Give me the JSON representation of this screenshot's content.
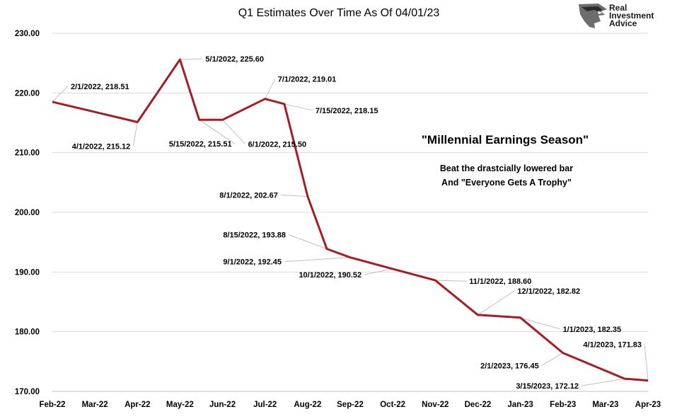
{
  "chart_data": {
    "type": "line",
    "title": "Q1 Estimates Over Time As Of 04/01/23",
    "categories": [
      "Feb-22",
      "Mar-22",
      "Apr-22",
      "May-22",
      "Jun-22",
      "Jul-22",
      "Aug-22",
      "Sep-22",
      "Oct-22",
      "Nov-22",
      "Dec-22",
      "Jan-23",
      "Feb-23",
      "Mar-23",
      "Apr-23"
    ],
    "ylim": [
      170,
      230
    ],
    "yticks": [
      "170.00",
      "180.00",
      "190.00",
      "200.00",
      "210.00",
      "220.00",
      "230.00"
    ],
    "grid": "horizontal",
    "series_color": "#a51c22",
    "points": [
      {
        "x": "2022-02-01",
        "y": 218.51,
        "label": "2/1/2022,  218.51"
      },
      {
        "x": "2022-04-01",
        "y": 215.12,
        "label": "4/1/2022,  215.12"
      },
      {
        "x": "2022-05-01",
        "y": 225.6,
        "label": "5/1/2022,  225.60"
      },
      {
        "x": "2022-05-15",
        "y": 215.51,
        "label": "5/15/2022,  215.51"
      },
      {
        "x": "2022-06-01",
        "y": 215.5,
        "label": "6/1/2022,  215.50"
      },
      {
        "x": "2022-07-01",
        "y": 219.01,
        "label": "7/1/2022,  219.01"
      },
      {
        "x": "2022-07-15",
        "y": 218.15,
        "label": "7/15/2022,  218.15"
      },
      {
        "x": "2022-08-01",
        "y": 202.67,
        "label": "8/1/2022,  202.67"
      },
      {
        "x": "2022-08-15",
        "y": 193.88,
        "label": "8/15/2022,  193.88"
      },
      {
        "x": "2022-09-01",
        "y": 192.45,
        "label": "9/1/2022,  192.45"
      },
      {
        "x": "2022-10-01",
        "y": 190.52,
        "label": "10/1/2022,  190.52"
      },
      {
        "x": "2022-11-01",
        "y": 188.6,
        "label": "11/1/2022,  188.60"
      },
      {
        "x": "2022-12-01",
        "y": 182.82,
        "label": "12/1/2022,  182.82"
      },
      {
        "x": "2023-01-01",
        "y": 182.35,
        "label": "1/1/2023,  182.35"
      },
      {
        "x": "2023-02-01",
        "y": 176.45,
        "label": "2/1/2023,  176.45"
      },
      {
        "x": "2023-03-15",
        "y": 172.12,
        "label": "3/15/2023,  172.12"
      },
      {
        "x": "2023-04-01",
        "y": 171.83,
        "label": "4/1/2023,  171.83"
      }
    ],
    "annotations": {
      "headline": "\"Millennial Earnings Season\"",
      "line1": "Beat the drastcially lowered bar",
      "line2": "And \"Everyone Gets A Trophy\""
    }
  },
  "logo": {
    "line1": "Real",
    "line2": "Investment",
    "line3": "Advice",
    "icon": "eagle-head-icon"
  }
}
